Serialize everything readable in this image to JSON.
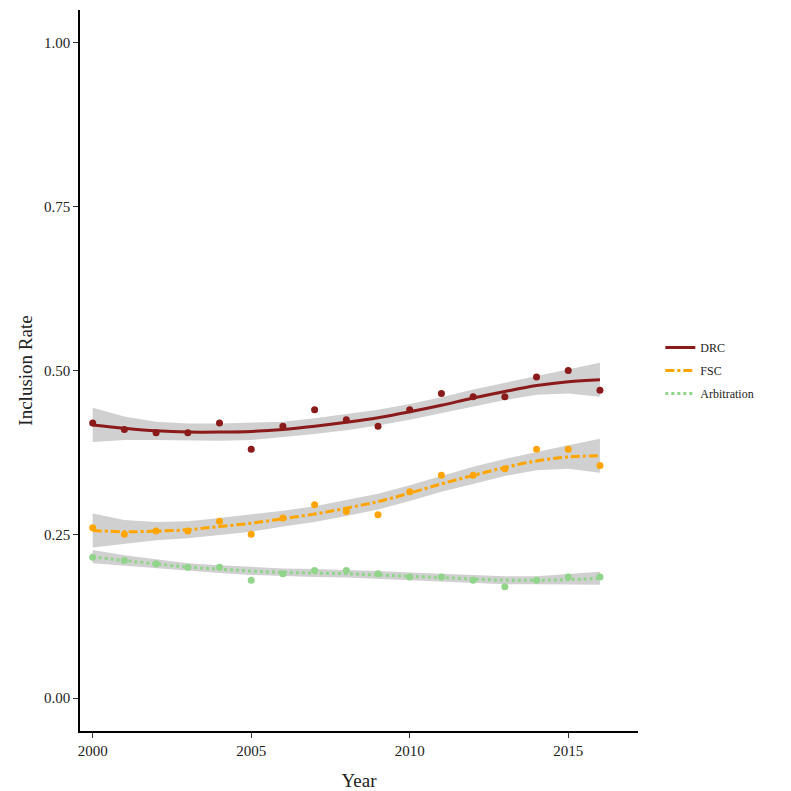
{
  "chart_data": {
    "type": "scatter",
    "x_label": "Year",
    "y_label": "Inclusion Rate",
    "x": [
      2000,
      2001,
      2002,
      2003,
      2004,
      2005,
      2006,
      2007,
      2008,
      2009,
      2010,
      2011,
      2012,
      2013,
      2014,
      2015,
      2016
    ],
    "xlim": [
      1999.6,
      2017.2
    ],
    "xticks": [
      2000,
      2005,
      2010,
      2015
    ],
    "ylim": [
      -0.05,
      1.05
    ],
    "yticks": [
      {
        "value": 0,
        "label": "0.00"
      },
      {
        "value": 0.25,
        "label": "0.25"
      },
      {
        "value": 0.5,
        "label": "0.50"
      },
      {
        "value": 0.75,
        "label": "0.75"
      },
      {
        "value": 1,
        "label": "1.00"
      }
    ],
    "grid": false,
    "legend": "right",
    "series": [
      {
        "name": "DRC",
        "color": "#8b1a1a",
        "marker": "circle",
        "line_style": "solid",
        "values": [
          0.42,
          0.41,
          0.405,
          0.405,
          0.42,
          0.38,
          0.415,
          0.44,
          0.425,
          0.415,
          0.44,
          0.465,
          0.46,
          0.46,
          0.49,
          0.5,
          0.47
        ],
        "fit": [
          0.417,
          0.412,
          0.408,
          0.406,
          0.406,
          0.407,
          0.41,
          0.415,
          0.421,
          0.428,
          0.437,
          0.447,
          0.458,
          0.468,
          0.477,
          0.483,
          0.486
        ],
        "fit_lower": [
          0.391,
          0.394,
          0.394,
          0.393,
          0.393,
          0.394,
          0.398,
          0.403,
          0.409,
          0.416,
          0.425,
          0.435,
          0.445,
          0.455,
          0.463,
          0.465,
          0.46
        ],
        "fit_upper": [
          0.443,
          0.43,
          0.422,
          0.419,
          0.419,
          0.42,
          0.422,
          0.427,
          0.433,
          0.44,
          0.449,
          0.459,
          0.471,
          0.481,
          0.491,
          0.501,
          0.512
        ]
      },
      {
        "name": "FSC",
        "color": "#ffa500",
        "marker": "circle",
        "line_style": "dashdot",
        "values": [
          0.26,
          0.25,
          0.255,
          0.255,
          0.27,
          0.25,
          0.275,
          0.295,
          0.285,
          0.28,
          0.315,
          0.34,
          0.34,
          0.35,
          0.38,
          0.38,
          0.355
        ],
        "fit": [
          0.256,
          0.254,
          0.255,
          0.257,
          0.262,
          0.267,
          0.274,
          0.281,
          0.29,
          0.3,
          0.313,
          0.327,
          0.34,
          0.352,
          0.362,
          0.368,
          0.37
        ],
        "fit_lower": [
          0.23,
          0.236,
          0.241,
          0.244,
          0.249,
          0.254,
          0.262,
          0.269,
          0.278,
          0.288,
          0.301,
          0.315,
          0.327,
          0.339,
          0.348,
          0.35,
          0.344
        ],
        "fit_upper": [
          0.282,
          0.272,
          0.269,
          0.27,
          0.275,
          0.28,
          0.286,
          0.293,
          0.302,
          0.312,
          0.325,
          0.339,
          0.353,
          0.365,
          0.376,
          0.386,
          0.396
        ]
      },
      {
        "name": "Arbitration",
        "color": "#90d58a",
        "marker": "circle",
        "line_style": "dot",
        "values": [
          0.215,
          0.21,
          0.205,
          0.2,
          0.2,
          0.18,
          0.19,
          0.195,
          0.195,
          0.19,
          0.185,
          0.185,
          0.18,
          0.17,
          0.18,
          0.185,
          0.185
        ],
        "fit": [
          0.216,
          0.21,
          0.205,
          0.2,
          0.197,
          0.194,
          0.192,
          0.191,
          0.19,
          0.188,
          0.186,
          0.184,
          0.182,
          0.18,
          0.18,
          0.181,
          0.183
        ],
        "fit_lower": [
          0.206,
          0.202,
          0.198,
          0.194,
          0.191,
          0.188,
          0.186,
          0.185,
          0.184,
          0.182,
          0.18,
          0.178,
          0.176,
          0.174,
          0.174,
          0.173,
          0.173
        ],
        "fit_upper": [
          0.226,
          0.218,
          0.212,
          0.206,
          0.203,
          0.2,
          0.198,
          0.197,
          0.196,
          0.194,
          0.192,
          0.19,
          0.188,
          0.186,
          0.186,
          0.189,
          0.193
        ]
      }
    ]
  }
}
